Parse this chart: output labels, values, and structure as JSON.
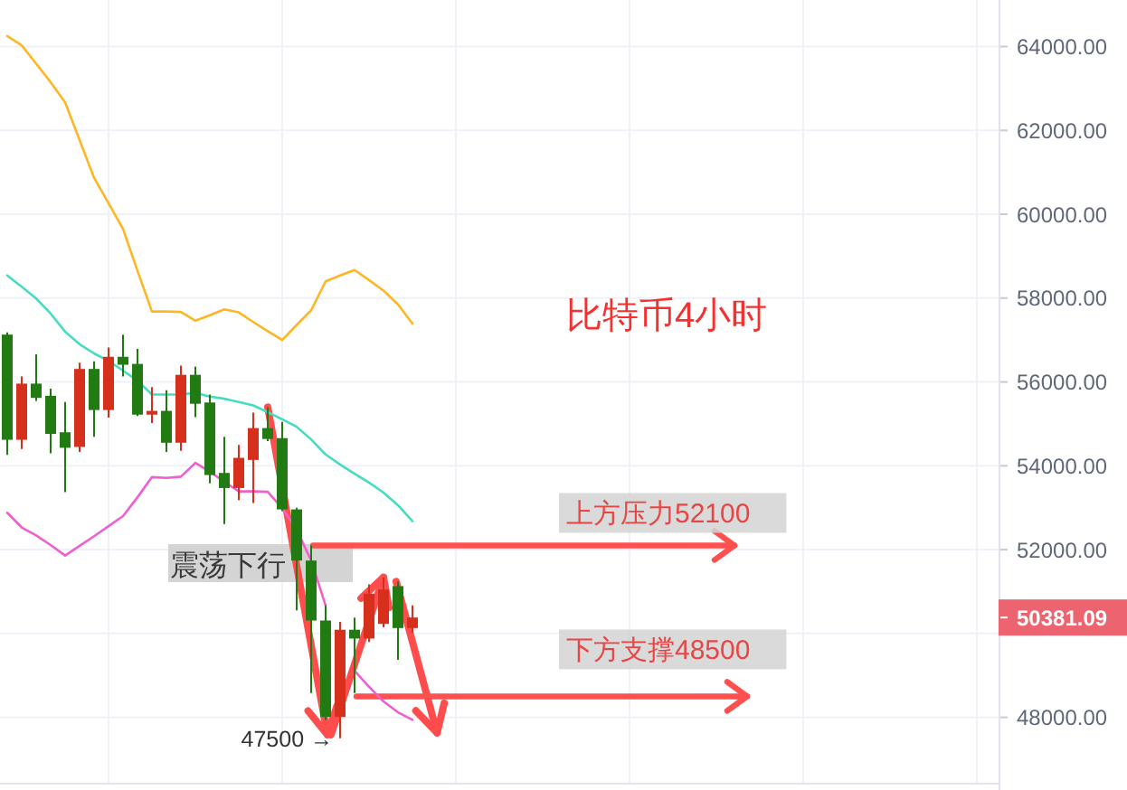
{
  "chart_data": {
    "type": "candlestick",
    "title": "比特币4小时",
    "categories": [
      null,
      null,
      null,
      null,
      null,
      null,
      null,
      null,
      null,
      null,
      null,
      null,
      null,
      null,
      null,
      null,
      null,
      null,
      null,
      null,
      null,
      null,
      null,
      null,
      null,
      null,
      null,
      null,
      null,
      null,
      null,
      null,
      null,
      null,
      null,
      null,
      null,
      null,
      null,
      null,
      null,
      null,
      null,
      null,
      null,
      null,
      null,
      null,
      null,
      null,
      null,
      null,
      null,
      null,
      null,
      null,
      null,
      null,
      null,
      null,
      null,
      null,
      null,
      null,
      null,
      null,
      null,
      null,
      null
    ],
    "ohlc": [
      [
        57130,
        57180,
        54260,
        54620
      ],
      [
        54620,
        56130,
        54400,
        55960
      ],
      [
        55960,
        56660,
        55550,
        55620
      ],
      [
        55670,
        55840,
        54300,
        54760
      ],
      [
        54800,
        55520,
        53370,
        54430
      ],
      [
        54450,
        56460,
        54330,
        56310
      ],
      [
        56310,
        56490,
        54690,
        55330
      ],
      [
        55330,
        56820,
        55150,
        56600
      ],
      [
        56600,
        57130,
        56130,
        56410
      ],
      [
        56430,
        56790,
        55190,
        55220
      ],
      [
        55220,
        55880,
        55020,
        55310
      ],
      [
        55310,
        55800,
        54330,
        54550
      ],
      [
        54550,
        56390,
        54360,
        56170
      ],
      [
        56170,
        56370,
        55160,
        55480
      ],
      [
        55510,
        55700,
        53580,
        53780
      ],
      [
        53830,
        54690,
        52610,
        53470
      ],
      [
        53470,
        54500,
        53180,
        54190
      ],
      [
        54140,
        55270,
        53110,
        54900
      ],
      [
        54900,
        55400,
        54590,
        54640
      ],
      [
        54660,
        55050,
        52920,
        52960
      ],
      [
        52960,
        53000,
        50550,
        51740
      ],
      [
        51740,
        52100,
        48580,
        50310
      ],
      [
        50310,
        50670,
        47940,
        48010
      ],
      [
        48010,
        50280,
        47500,
        50090
      ],
      [
        50090,
        50380,
        48580,
        49880
      ],
      [
        49880,
        51170,
        49800,
        50950
      ],
      [
        50230,
        51340,
        50150,
        51050
      ],
      [
        51130,
        51240,
        49370,
        50130
      ],
      [
        50130,
        50670,
        50020,
        50381.09
      ],
      null,
      null,
      null,
      null,
      null,
      null,
      null,
      null,
      null,
      null,
      null,
      null,
      null,
      null,
      null,
      null,
      null,
      null,
      null,
      null,
      null,
      null,
      null,
      null,
      null,
      null,
      null,
      null,
      null,
      null,
      null,
      null,
      null,
      null,
      null,
      null,
      null,
      null,
      null,
      null
    ],
    "colors": [
      "#217a12",
      "#d6301d",
      "#217a12",
      "#217a12",
      "#217a12",
      "#d6301d",
      "#217a12",
      "#d6301d",
      "#217a12",
      "#217a12",
      "#d6301d",
      "#217a12",
      "#d6301d",
      "#217a12",
      "#217a12",
      "#217a12",
      "#d6301d",
      "#d6301d",
      "#217a12",
      "#217a12",
      "#217a12",
      "#217a12",
      "#217a12",
      "#d6301d",
      "#217a12",
      "#d6301d",
      "#d6301d",
      "#217a12",
      "#d6301d",
      null,
      null,
      null,
      null,
      null,
      null,
      null,
      null,
      null,
      null,
      null,
      null,
      null,
      null,
      null,
      null,
      null,
      null,
      null,
      null,
      null,
      null,
      null,
      null,
      null,
      null,
      null,
      null,
      null,
      null,
      null,
      null,
      null,
      null,
      null,
      null,
      null,
      null,
      null,
      null
    ],
    "series": [
      {
        "type": "line",
        "color": "#ffb624",
        "values": [
          64250,
          64030,
          63590,
          63150,
          62670,
          61770,
          60870,
          60260,
          59650,
          58650,
          57680,
          57680,
          57670,
          57460,
          57590,
          57730,
          57660,
          57430,
          57210,
          57000,
          57360,
          57710,
          58400,
          58540,
          58670,
          58430,
          58180,
          57850,
          57390,
          null,
          null,
          null,
          null,
          null,
          null,
          null,
          null,
          null,
          null,
          null,
          null,
          null,
          null,
          null,
          null,
          null,
          null,
          null,
          null,
          null,
          null,
          null,
          null,
          null,
          null,
          null,
          null,
          null,
          null,
          null,
          null,
          null,
          null,
          null,
          null,
          null,
          null,
          null,
          null
        ]
      },
      {
        "type": "line",
        "color": "#47dcc0",
        "values": [
          58540,
          58270,
          57990,
          57630,
          57200,
          56900,
          56680,
          56500,
          56270,
          56030,
          55700,
          55700,
          55700,
          55740,
          55650,
          55600,
          55520,
          55440,
          55280,
          55110,
          54930,
          54630,
          54270,
          54030,
          53810,
          53600,
          53360,
          53060,
          52680,
          null,
          null,
          null,
          null,
          null,
          null,
          null,
          null,
          null,
          null,
          null,
          null,
          null,
          null,
          null,
          null,
          null,
          null,
          null,
          null,
          null,
          null,
          null,
          null,
          null,
          null,
          null,
          null,
          null,
          null,
          null,
          null,
          null,
          null,
          null,
          null,
          null,
          null,
          null,
          null
        ]
      },
      {
        "type": "line",
        "color": "#ef5fcf",
        "values": [
          52880,
          52530,
          52340,
          52110,
          51860,
          52090,
          52320,
          52560,
          52800,
          53250,
          53730,
          53710,
          53740,
          54070,
          53860,
          53620,
          53390,
          53390,
          53380,
          52990,
          52480,
          51740,
          50670,
          null,
          49110,
          48730,
          48380,
          48120,
          47940,
          null,
          null,
          null,
          null,
          null,
          null,
          null,
          null,
          null,
          null,
          null,
          null,
          null,
          null,
          null,
          null,
          null,
          null,
          null,
          null,
          null,
          null,
          null,
          null,
          null,
          null,
          null,
          null,
          null,
          null,
          null,
          null,
          null,
          null,
          null,
          null,
          null,
          null,
          null,
          null
        ]
      }
    ],
    "ylim": [
      46440,
      65110
    ],
    "yticks": [
      {
        "value": 48000,
        "label": "48000.00"
      },
      {
        "value": 50000,
        "label": null
      },
      {
        "value": 52000,
        "label": "52000.00"
      },
      {
        "value": 54000,
        "label": "54000.00"
      },
      {
        "value": 56000,
        "label": "56000.00"
      },
      {
        "value": 58000,
        "label": "58000.00"
      },
      {
        "value": 60000,
        "label": "60000.00"
      },
      {
        "value": 62000,
        "label": "62000.00"
      },
      {
        "value": 64000,
        "label": "64000.00"
      }
    ],
    "grid": true,
    "ref_lines": [
      {
        "axis": "y",
        "value": 52100,
        "label": "上方压力52100",
        "color": "#ff5050"
      },
      {
        "axis": "y",
        "value": 48500,
        "label": "下方支撑48500",
        "color": "#ff5050"
      }
    ],
    "annotations": [
      "震荡下行",
      "47500 →",
      "50381.09"
    ]
  }
}
